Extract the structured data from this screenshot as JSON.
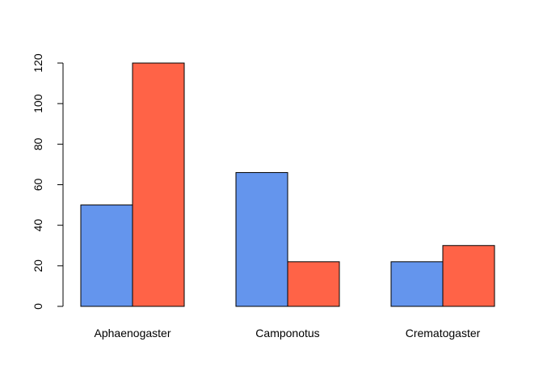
{
  "chart_data": {
    "type": "bar",
    "layout": "grouped",
    "categories": [
      "Aphaenogaster",
      "Camponotus",
      "Crematogaster"
    ],
    "series": [
      {
        "values": [
          50,
          66,
          22
        ],
        "color": "#6495ED"
      },
      {
        "values": [
          120,
          22,
          30
        ],
        "color": "#FF6347"
      }
    ],
    "ylim": [
      0,
      120
    ],
    "yticks": [
      0,
      20,
      40,
      60,
      80,
      100,
      120
    ],
    "grid": false,
    "legend": "none"
  }
}
